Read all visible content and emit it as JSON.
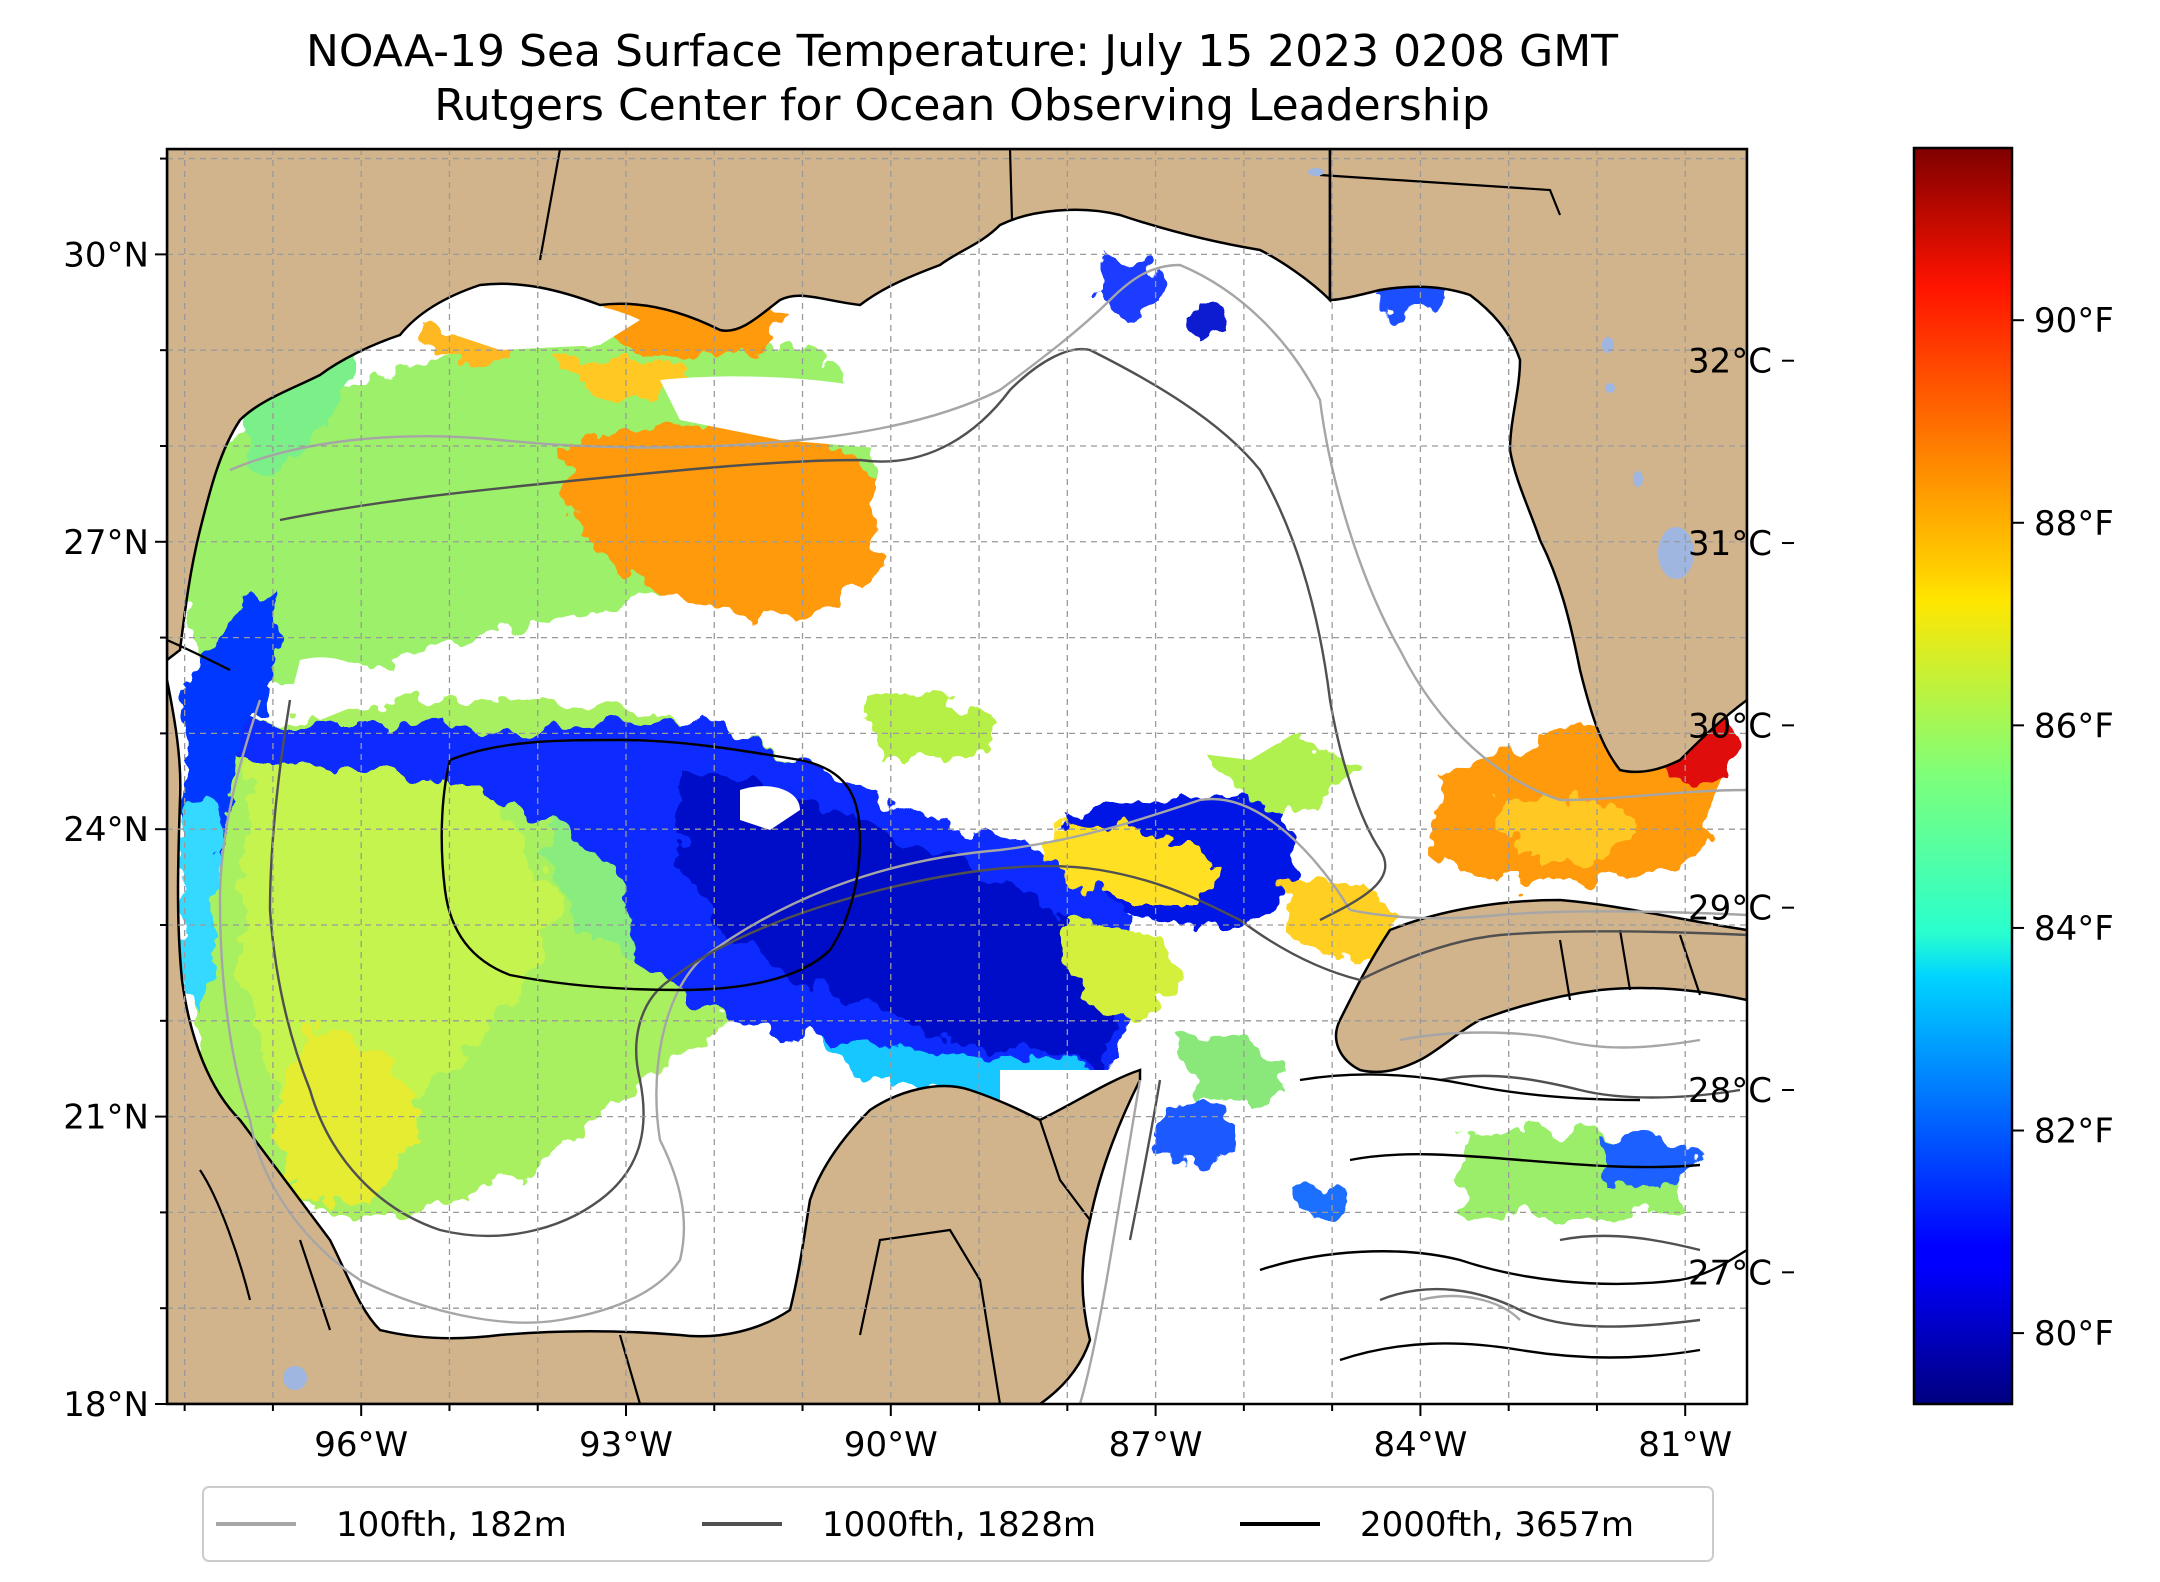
{
  "title": {
    "line1": "NOAA-19 Sea Surface Temperature: July 15 2023 0208 GMT",
    "line2": "Rutgers Center for Ocean Observing Leadership"
  },
  "map": {
    "lon_range": [
      -98.2,
      -80.3
    ],
    "lat_range": [
      18.0,
      31.1
    ],
    "lat_ticks": [
      {
        "value": 18,
        "label": "18°N"
      },
      {
        "value": 21,
        "label": "21°N"
      },
      {
        "value": 24,
        "label": "24°N"
      },
      {
        "value": 27,
        "label": "27°N"
      },
      {
        "value": 30,
        "label": "30°N"
      }
    ],
    "lon_ticks": [
      {
        "value": -96,
        "label": "96°W"
      },
      {
        "value": -93,
        "label": "93°W"
      },
      {
        "value": -90,
        "label": "90°W"
      },
      {
        "value": -87,
        "label": "87°W"
      },
      {
        "value": -84,
        "label": "84°W"
      },
      {
        "value": -81,
        "label": "81°W"
      }
    ],
    "gridlines": true,
    "colors": {
      "land": "#d2b48c",
      "water_no_data": "#ffffff",
      "lakes": "#9fb6e0",
      "contour_100fth": "#a6a6a6",
      "contour_1000fth": "#505050",
      "contour_2000fth": "#000000"
    }
  },
  "colorbar": {
    "colormap": "jet",
    "celsius_ticks": [
      {
        "value": 27,
        "label": "27°C"
      },
      {
        "value": 28,
        "label": "28°C"
      },
      {
        "value": 29,
        "label": "29°C"
      },
      {
        "value": 30,
        "label": "30°C"
      },
      {
        "value": 31,
        "label": "31°C"
      },
      {
        "value": 32,
        "label": "32°C"
      }
    ],
    "fahrenheit_ticks": [
      {
        "value": 80,
        "label": "80°F"
      },
      {
        "value": 82,
        "label": "82°F"
      },
      {
        "value": 84,
        "label": "84°F"
      },
      {
        "value": 86,
        "label": "86°F"
      },
      {
        "value": 88,
        "label": "88°F"
      },
      {
        "value": 90,
        "label": "90°F"
      }
    ],
    "range_f": [
      79.3,
      91.7
    ]
  },
  "legend": {
    "placement": "bottom",
    "items": [
      {
        "label": "100fth, 182m",
        "color": "#a6a6a6"
      },
      {
        "label": "1000fth, 1828m",
        "color": "#505050"
      },
      {
        "label": "2000fth, 3657m",
        "color": "#000000"
      }
    ]
  }
}
